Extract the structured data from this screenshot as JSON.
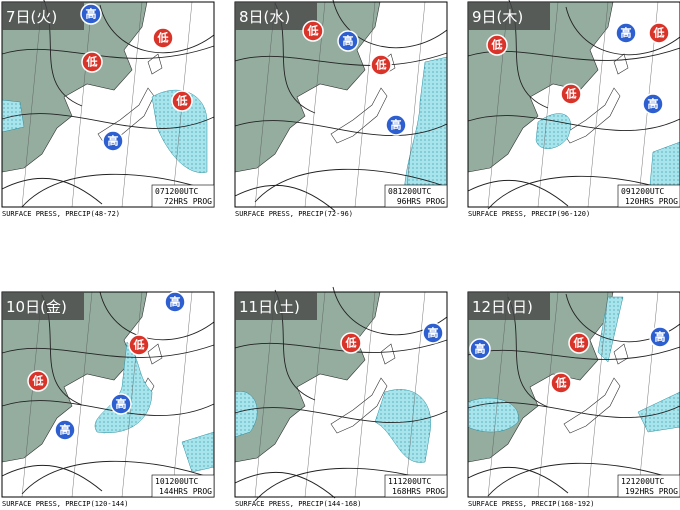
{
  "panels": [
    {
      "date": "7日(火)",
      "stamp_time": "071200UTC",
      "stamp_prog": "72HRS PROG",
      "caption": "SURFACE PRESS, PRECIP(48-72)",
      "systems": [
        "高",
        "低",
        "低",
        "低",
        "高"
      ]
    },
    {
      "date": "8日(水)",
      "stamp_time": "081200UTC",
      "stamp_prog": "96HRS PROG",
      "caption": "SURFACE PRESS, PRECIP(72-96)",
      "systems": [
        "低",
        "高",
        "低",
        "高"
      ]
    },
    {
      "date": "9日(木)",
      "stamp_time": "091200UTC",
      "stamp_prog": "120HRS PROG",
      "caption": "SURFACE PRESS, PRECIP(96-120)",
      "systems": [
        "高",
        "低",
        "低",
        "低",
        "高"
      ]
    },
    {
      "date": "10日(金)",
      "stamp_time": "101200UTC",
      "stamp_prog": "144HRS PROG",
      "caption": "SURFACE PRESS, PRECIP(120-144)",
      "systems": [
        "高",
        "低",
        "低",
        "高",
        "高"
      ]
    },
    {
      "date": "11日(土)",
      "stamp_time": "111200UTC",
      "stamp_prog": "168HRS PROG",
      "caption": "SURFACE PRESS, PRECIP(144-168)",
      "systems": [
        "低",
        "高"
      ]
    },
    {
      "date": "12日(日)",
      "stamp_time": "121200UTC",
      "stamp_prog": "192HRS PROG",
      "caption": "SURFACE PRESS, PRECIP(168-192)",
      "systems": [
        "高",
        "高",
        "低",
        "低"
      ]
    }
  ]
}
